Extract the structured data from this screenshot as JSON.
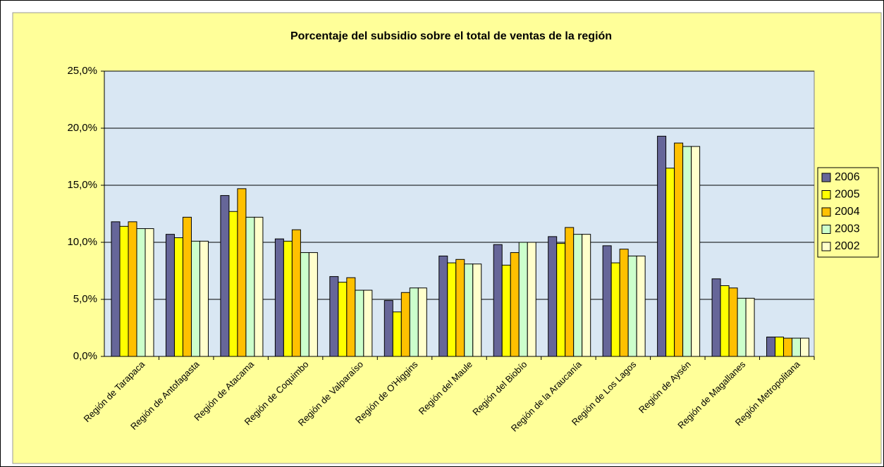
{
  "chart_data": {
    "type": "bar",
    "title": "Porcentaje del subsidio sobre el total de ventas de la región",
    "categories": [
      "Región de Tarapaca",
      "Región de Antofagasta",
      "Región de Atacama",
      "Región de Coquimbo",
      "Región de Valparaíso",
      "Región de O'Higgins",
      "Región del Maule",
      "Región del Biobío",
      "Región de la Araucanía",
      "Región de Los Lagos",
      "Región de Aysén",
      "Región de Magallanes",
      "Región Metropolitana"
    ],
    "series": [
      {
        "name": "2006",
        "color": "#666699",
        "values": [
          11.8,
          10.7,
          14.1,
          10.3,
          7.0,
          4.9,
          8.8,
          9.8,
          10.5,
          9.7,
          19.3,
          6.8,
          1.7
        ]
      },
      {
        "name": "2005",
        "color": "#ffff00",
        "values": [
          11.4,
          10.4,
          12.7,
          10.1,
          6.5,
          3.9,
          8.2,
          8.0,
          9.9,
          8.2,
          16.5,
          6.2,
          1.7
        ]
      },
      {
        "name": "2004",
        "color": "#ffc000",
        "values": [
          11.8,
          12.2,
          14.7,
          11.1,
          6.9,
          5.6,
          8.5,
          9.1,
          11.3,
          9.4,
          18.7,
          6.0,
          1.6
        ]
      },
      {
        "name": "2003",
        "color": "#ccffcc",
        "values": [
          11.2,
          10.1,
          12.2,
          9.1,
          5.8,
          6.0,
          8.1,
          10.0,
          10.7,
          8.8,
          18.4,
          5.1,
          1.6
        ]
      },
      {
        "name": "2002",
        "color": "#ffffcc",
        "values": [
          11.2,
          10.1,
          12.2,
          9.1,
          5.8,
          6.0,
          8.1,
          10.0,
          10.7,
          8.8,
          18.4,
          5.1,
          1.6
        ]
      }
    ],
    "ylim": [
      0,
      25
    ],
    "yticks": [
      {
        "value": 0,
        "label": "0,0%"
      },
      {
        "value": 5,
        "label": "5,0%"
      },
      {
        "value": 10,
        "label": "10,0%"
      },
      {
        "value": 15,
        "label": "15,0%"
      },
      {
        "value": 20,
        "label": "20,0%"
      },
      {
        "value": 25,
        "label": "25,0%"
      }
    ],
    "grid": true,
    "legend": "right"
  }
}
